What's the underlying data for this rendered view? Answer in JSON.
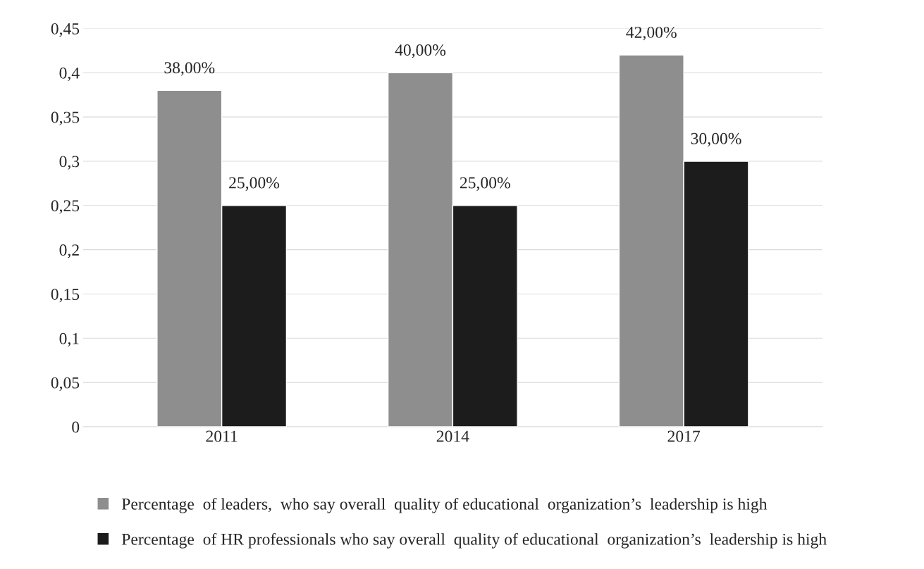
{
  "chart_data": {
    "type": "bar",
    "categories": [
      "2011",
      "2014",
      "2017"
    ],
    "series": [
      {
        "name": "Percentage  of leaders,  who say overall  quality of educational  organization’s  leadership is high",
        "color": "#8e8e8e",
        "values": [
          0.38,
          0.4,
          0.42
        ],
        "value_labels": [
          "38,00%",
          "40,00%",
          "42,00%"
        ]
      },
      {
        "name": "Percentage  of HR professionals who say overall  quality of educational  organization’s  leadership is high",
        "color": "#1c1c1c",
        "values": [
          0.25,
          0.25,
          0.3
        ],
        "value_labels": [
          "25,00%",
          "25,00%",
          "30,00%"
        ]
      }
    ],
    "ylim": [
      0,
      0.45
    ],
    "yticks": [
      0,
      {
        "value": 0.05,
        "label": "0,05"
      },
      {
        "value": 0.1,
        "label": "0,1"
      },
      {
        "value": 0.15,
        "label": "0,15"
      },
      {
        "value": 0.2,
        "label": "0,2"
      },
      {
        "value": 0.25,
        "label": "0,25"
      },
      {
        "value": 0.3,
        "label": "0,3"
      },
      {
        "value": 0.35,
        "label": "0,35"
      },
      {
        "value": 0.4,
        "label": "0,4"
      },
      {
        "value": 0.45,
        "label": "0,45"
      }
    ],
    "grid": "y",
    "legend": "bottom"
  }
}
